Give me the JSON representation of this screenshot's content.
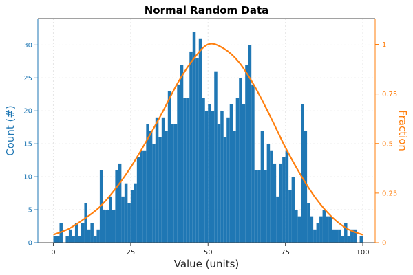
{
  "chart_data": {
    "type": "bar",
    "title": "Normal Random Data",
    "xlabel": "Value (units)",
    "ylabel": "Count (#)",
    "ylabel_right": "Fraction",
    "xlim": [
      -5,
      104
    ],
    "ylim": [
      0,
      34
    ],
    "ylim_right": [
      0,
      1.13
    ],
    "x_ticks": [
      "0",
      "25",
      "50",
      "75",
      "100"
    ],
    "y_ticks": [
      "0",
      "5",
      "10",
      "15",
      "20",
      "25",
      "30"
    ],
    "y_ticks_right": [
      "0",
      "0.25",
      "0.5",
      "0.75",
      "1"
    ],
    "grid": true,
    "colors": {
      "bars": "#1f77b4",
      "curve": "#ff7f0e",
      "left_axis": "#1f77b4",
      "right_axis": "#ff7f0e"
    },
    "series": [
      {
        "type": "bar",
        "axis": "left",
        "x": [
          0,
          1,
          2,
          3,
          4,
          5,
          6,
          7,
          8,
          9,
          10,
          11,
          12,
          13,
          14,
          15,
          16,
          17,
          18,
          19,
          20,
          21,
          22,
          23,
          24,
          25,
          26,
          27,
          28,
          29,
          30,
          31,
          32,
          33,
          34,
          35,
          36,
          37,
          38,
          39,
          40,
          41,
          42,
          43,
          44,
          45,
          46,
          47,
          48,
          49,
          50,
          51,
          52,
          53,
          54,
          55,
          56,
          57,
          58,
          59,
          60,
          61,
          62,
          63,
          64,
          65,
          66,
          67,
          68,
          69,
          70,
          71,
          72,
          73,
          74,
          75,
          76,
          77,
          78,
          79,
          80,
          81,
          82,
          83,
          84,
          85,
          86,
          87,
          88,
          89,
          90,
          91,
          92,
          93,
          94,
          95,
          96,
          97,
          98,
          99
        ],
        "values": [
          1,
          1,
          3,
          0,
          1,
          2,
          1,
          3,
          1,
          3,
          6,
          2,
          3,
          1,
          2,
          11,
          5,
          5,
          7,
          5,
          11,
          12,
          7,
          9,
          6,
          8,
          9,
          13,
          14,
          14,
          18,
          17,
          15,
          19,
          16,
          19,
          17,
          23,
          18,
          18,
          24,
          27,
          22,
          22,
          29,
          32,
          28,
          31,
          22,
          20,
          21,
          20,
          26,
          18,
          20,
          16,
          19,
          21,
          17,
          22,
          25,
          21,
          27,
          30,
          24,
          11,
          11,
          17,
          11,
          15,
          14,
          12,
          7,
          12,
          13,
          14,
          8,
          10,
          5,
          4,
          21,
          17,
          6,
          4,
          2,
          3,
          4,
          5,
          4,
          4,
          2,
          2,
          2,
          1,
          3,
          1,
          2,
          2,
          0,
          1
        ]
      },
      {
        "type": "line",
        "axis": "right",
        "x": [
          0,
          5,
          10,
          15,
          20,
          25,
          30,
          35,
          40,
          45,
          50,
          55,
          60,
          65,
          70,
          75,
          80,
          85,
          90,
          95,
          100
        ],
        "values": [
          0.04,
          0.07,
          0.12,
          0.18,
          0.27,
          0.38,
          0.51,
          0.65,
          0.8,
          0.92,
          1.0,
          0.98,
          0.91,
          0.79,
          0.64,
          0.48,
          0.34,
          0.22,
          0.13,
          0.07,
          0.04
        ]
      }
    ]
  }
}
